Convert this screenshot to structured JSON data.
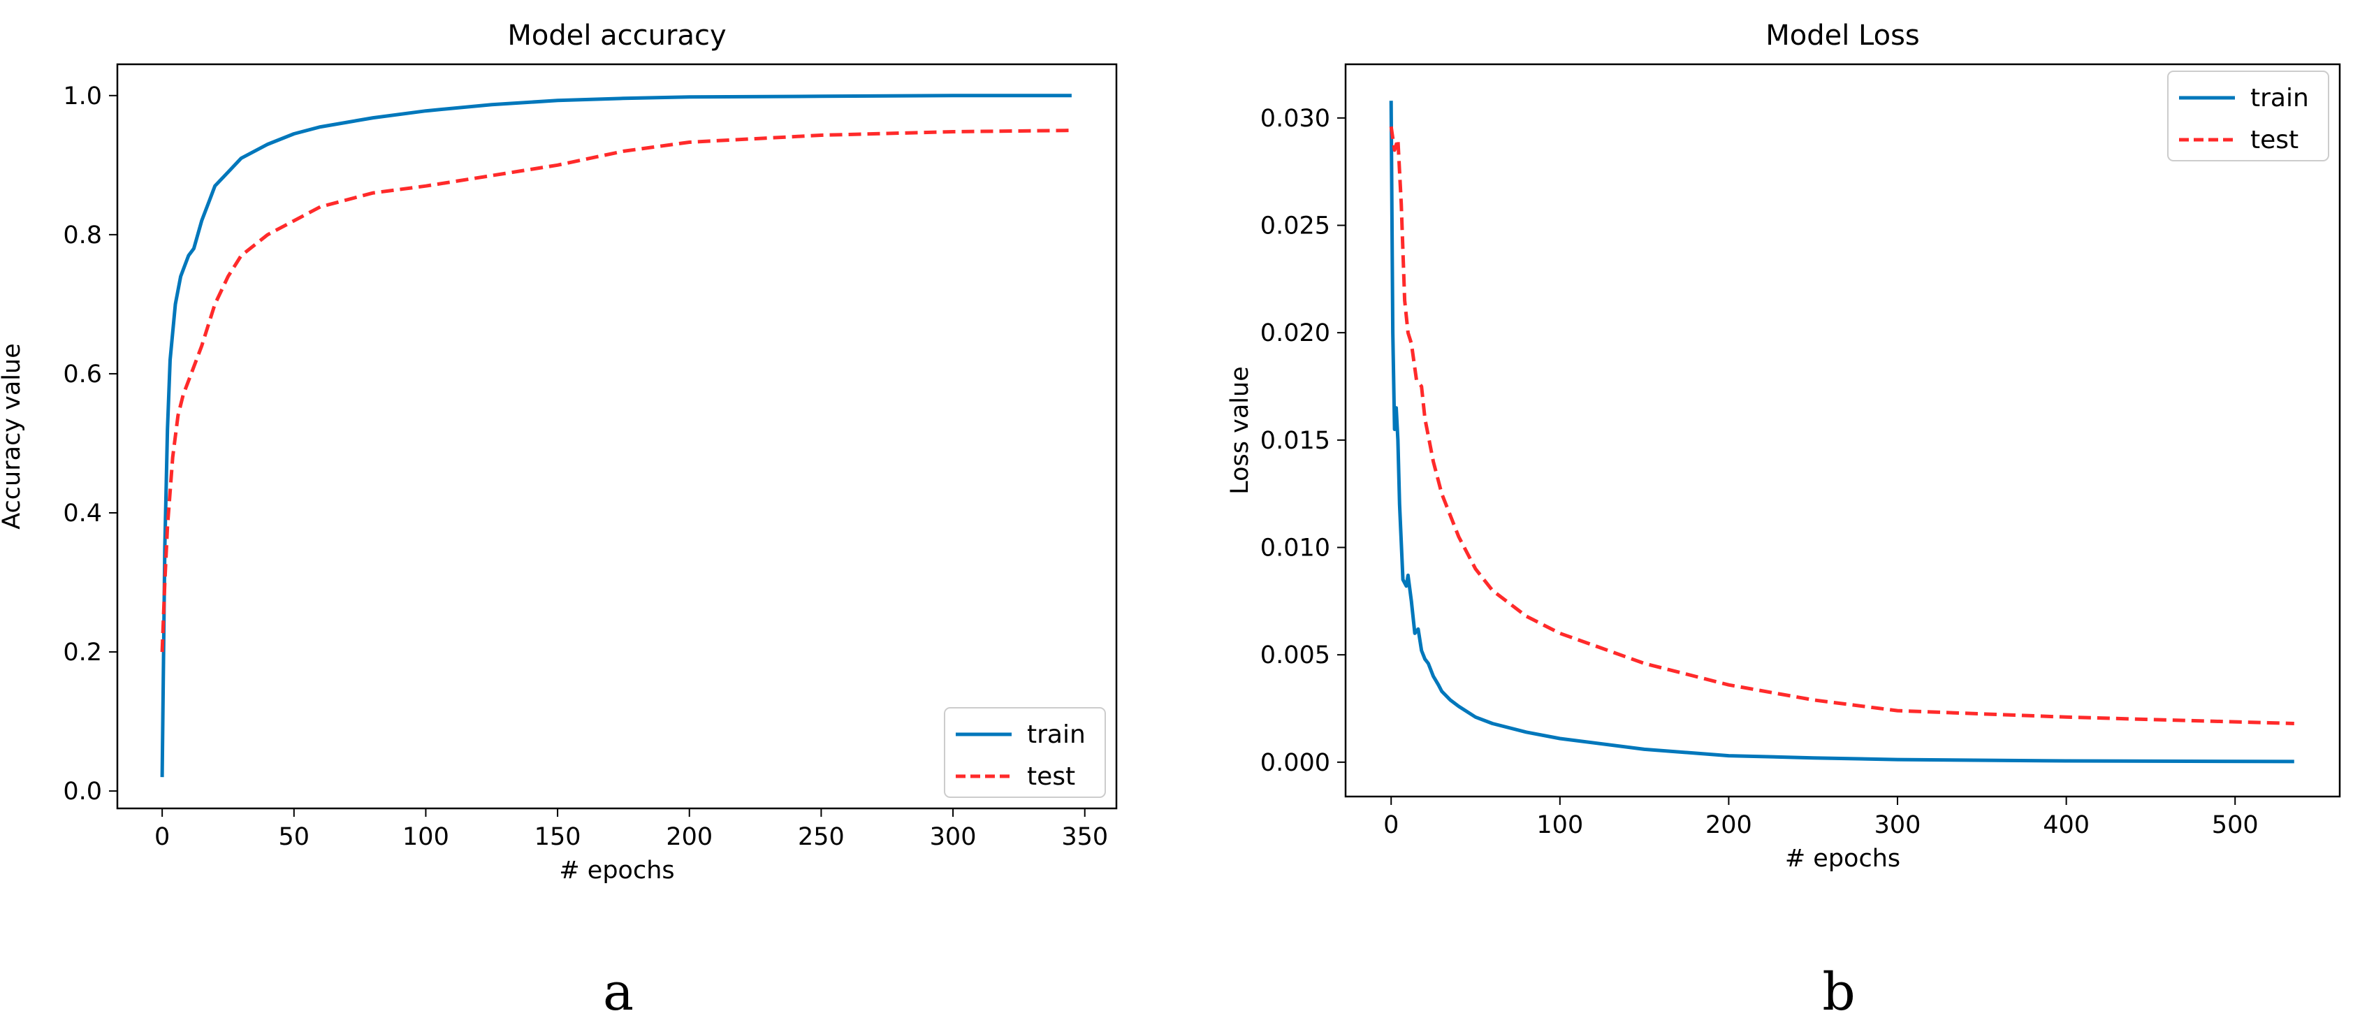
{
  "chart_data": [
    {
      "type": "line",
      "panel": "a",
      "title": "Model accuracy",
      "xlabel": "# epochs",
      "ylabel": "Accuracy value",
      "xlim": [
        -17,
        362
      ],
      "ylim": [
        -0.025,
        1.045
      ],
      "xticks": [
        0,
        50,
        100,
        150,
        200,
        250,
        300,
        350
      ],
      "yticks": [
        0.0,
        0.2,
        0.4,
        0.6,
        0.8,
        1.0
      ],
      "xtick_labels": [
        "0",
        "50",
        "100",
        "150",
        "200",
        "250",
        "300",
        "350"
      ],
      "ytick_labels": [
        "0.0",
        "0.2",
        "0.4",
        "0.6",
        "0.8",
        "1.0"
      ],
      "grid": false,
      "legend_position": "bottom-right",
      "series": [
        {
          "name": "train",
          "color": "#0077bb",
          "style": "solid",
          "x": [
            0,
            1,
            2,
            3,
            5,
            7,
            10,
            12,
            15,
            18,
            20,
            25,
            30,
            40,
            50,
            60,
            80,
            100,
            125,
            150,
            175,
            200,
            250,
            300,
            345
          ],
          "y": [
            0.02,
            0.35,
            0.52,
            0.62,
            0.7,
            0.74,
            0.77,
            0.78,
            0.82,
            0.85,
            0.87,
            0.89,
            0.91,
            0.93,
            0.945,
            0.955,
            0.968,
            0.978,
            0.987,
            0.993,
            0.996,
            0.998,
            0.999,
            1.0,
            1.0
          ]
        },
        {
          "name": "test",
          "color": "#ff2a2a",
          "style": "dashed",
          "x": [
            0,
            1,
            2,
            4,
            6,
            8,
            10,
            15,
            20,
            25,
            30,
            40,
            50,
            60,
            80,
            100,
            125,
            150,
            175,
            200,
            250,
            300,
            345
          ],
          "y": [
            0.2,
            0.3,
            0.38,
            0.48,
            0.54,
            0.57,
            0.59,
            0.64,
            0.7,
            0.74,
            0.77,
            0.8,
            0.82,
            0.84,
            0.86,
            0.87,
            0.885,
            0.9,
            0.92,
            0.933,
            0.943,
            0.948,
            0.95
          ]
        }
      ]
    },
    {
      "type": "line",
      "panel": "b",
      "title": "Model Loss",
      "xlabel": "# epochs",
      "ylabel": "Loss value",
      "xlim": [
        -27,
        562
      ],
      "ylim": [
        -0.0016,
        0.0325
      ],
      "xticks": [
        0,
        100,
        200,
        300,
        400,
        500
      ],
      "yticks": [
        0.0,
        0.005,
        0.01,
        0.015,
        0.02,
        0.025,
        0.03
      ],
      "xtick_labels": [
        "0",
        "100",
        "200",
        "300",
        "400",
        "500"
      ],
      "ytick_labels": [
        "0.000",
        "0.005",
        "0.010",
        "0.015",
        "0.020",
        "0.025",
        "0.030"
      ],
      "grid": false,
      "legend_position": "top-right",
      "series": [
        {
          "name": "train",
          "color": "#0077bb",
          "style": "solid",
          "x": [
            0,
            1,
            2,
            3,
            4,
            5,
            7,
            9,
            10,
            12,
            14,
            16,
            18,
            20,
            22,
            25,
            28,
            30,
            35,
            40,
            50,
            60,
            80,
            100,
            150,
            200,
            250,
            300,
            400,
            535
          ],
          "y": [
            0.0308,
            0.02,
            0.0155,
            0.0165,
            0.015,
            0.012,
            0.0085,
            0.0082,
            0.0087,
            0.0075,
            0.006,
            0.0062,
            0.0052,
            0.0048,
            0.0046,
            0.004,
            0.0036,
            0.0033,
            0.0029,
            0.0026,
            0.0021,
            0.0018,
            0.0014,
            0.0011,
            0.0006,
            0.0003,
            0.0002,
            0.00012,
            6e-05,
            3e-05
          ]
        },
        {
          "name": "test",
          "color": "#ff2a2a",
          "style": "dashed",
          "x": [
            0,
            2,
            4,
            6,
            8,
            10,
            12,
            15,
            18,
            20,
            25,
            30,
            40,
            50,
            60,
            80,
            100,
            125,
            150,
            200,
            250,
            300,
            400,
            535
          ],
          "y": [
            0.0296,
            0.0285,
            0.029,
            0.026,
            0.0215,
            0.02,
            0.0195,
            0.0178,
            0.0175,
            0.016,
            0.014,
            0.0125,
            0.0105,
            0.009,
            0.008,
            0.0068,
            0.006,
            0.0053,
            0.0046,
            0.0036,
            0.0029,
            0.0024,
            0.0021,
            0.0018
          ]
        }
      ]
    }
  ],
  "panel_letters": [
    "a",
    "b"
  ]
}
